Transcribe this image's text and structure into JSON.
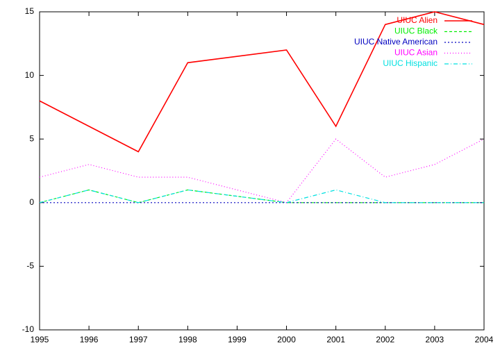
{
  "chart_data": {
    "type": "line",
    "x": [
      1995,
      1996,
      1997,
      1998,
      2000,
      2001,
      2002,
      2003,
      2004
    ],
    "series": [
      {
        "name": "UIUC Alien",
        "color": "#ff0000",
        "values": [
          8,
          6,
          4,
          11,
          12,
          6,
          14,
          15,
          14
        ]
      },
      {
        "name": "UIUC Black",
        "color": "#00ee00",
        "values": [
          0,
          1,
          0,
          1,
          0,
          0,
          0,
          0,
          0
        ]
      },
      {
        "name": "UIUC Native American",
        "color": "#0000c0",
        "values": [
          0,
          0,
          0,
          0,
          0,
          0,
          0,
          0,
          0
        ]
      },
      {
        "name": "UIUC Asian",
        "color": "#ff00ff",
        "values": [
          2,
          3,
          2,
          2,
          0,
          5,
          2,
          3,
          5
        ]
      },
      {
        "name": "UIUC Hispanic",
        "color": "#00e0e0",
        "values": [
          0,
          1,
          0,
          1,
          0,
          1,
          0,
          0,
          0
        ]
      }
    ],
    "xlim": [
      1995,
      2004
    ],
    "xticks": [
      1995,
      1996,
      1997,
      1998,
      1999,
      2000,
      2001,
      2002,
      2003,
      2004
    ],
    "ylim": [
      -10,
      15
    ],
    "yticks": [
      -10,
      -5,
      0,
      5,
      10,
      15
    ],
    "grid": false,
    "legend": "top-right"
  }
}
